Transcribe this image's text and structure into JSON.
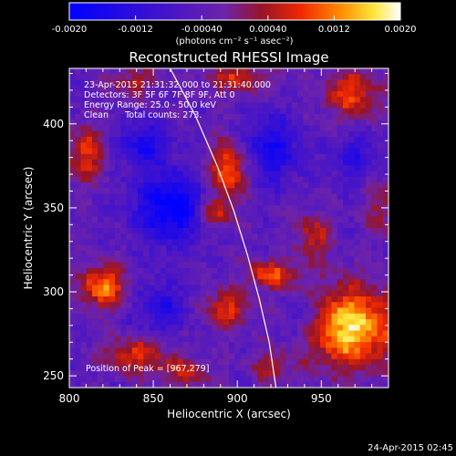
{
  "chart_data": {
    "type": "heatmap",
    "title": "Reconstructed RHESSI Image",
    "xlabel": "Heliocentric X (arcsec)",
    "ylabel": "Heliocentric Y (arcsec)",
    "xlim": [
      800,
      990
    ],
    "ylim": [
      243,
      433
    ],
    "x_ticks": [
      800,
      850,
      900,
      950
    ],
    "y_ticks": [
      250,
      300,
      350,
      400
    ],
    "colorbar": {
      "min": -0.002,
      "max": 0.002,
      "tick_labels": [
        "-0.0020",
        "-0.0012",
        "-0.00040",
        "0.00040",
        "0.0012",
        "0.0020"
      ],
      "unit_label": "(photons cm⁻² s⁻¹ asec⁻²)"
    },
    "annotations": [
      "23-Apr-2015 21:31:32.000 to 21:31:40.000",
      "Detectors: 3F 5F 6F 7F 8F 9F, Att 0",
      "Energy Range: 25.0 - 50.0 keV",
      "Clean      Total counts: 273."
    ],
    "peak_label": "Position of Peak = [967,279]",
    "peak": [
      967,
      279
    ],
    "limb_curve": [
      [
        860,
        433
      ],
      [
        875,
        405
      ],
      [
        888,
        375
      ],
      [
        898,
        348
      ],
      [
        906,
        322
      ],
      [
        913,
        296
      ],
      [
        919,
        270
      ],
      [
        923,
        243
      ]
    ],
    "sources": [
      {
        "x": 967,
        "y": 279,
        "sx": 19,
        "sy": 17,
        "amp": 1.0
      },
      {
        "x": 895,
        "y": 373,
        "sx": 8,
        "sy": 12,
        "amp": 0.75
      },
      {
        "x": 887,
        "y": 347,
        "sx": 7,
        "sy": 6,
        "amp": 0.55
      },
      {
        "x": 968,
        "y": 418,
        "sx": 12,
        "sy": 10,
        "amp": 0.6
      },
      {
        "x": 810,
        "y": 382,
        "sx": 8,
        "sy": 12,
        "amp": 0.55
      },
      {
        "x": 900,
        "y": 427,
        "sx": 14,
        "sy": 6,
        "amp": 0.5
      },
      {
        "x": 838,
        "y": 425,
        "sx": 10,
        "sy": 6,
        "amp": 0.4
      },
      {
        "x": 920,
        "y": 310,
        "sx": 10,
        "sy": 6,
        "amp": 0.65
      },
      {
        "x": 893,
        "y": 290,
        "sx": 10,
        "sy": 8,
        "amp": 0.55
      },
      {
        "x": 820,
        "y": 303,
        "sx": 10,
        "sy": 9,
        "amp": 0.75
      },
      {
        "x": 840,
        "y": 262,
        "sx": 14,
        "sy": 8,
        "amp": 0.55
      },
      {
        "x": 870,
        "y": 252,
        "sx": 10,
        "sy": 6,
        "amp": 0.45
      },
      {
        "x": 945,
        "y": 333,
        "sx": 8,
        "sy": 10,
        "amp": 0.45
      },
      {
        "x": 920,
        "y": 255,
        "sx": 8,
        "sy": 6,
        "amp": 0.4
      },
      {
        "x": 985,
        "y": 350,
        "sx": 6,
        "sy": 12,
        "amp": 0.35
      },
      {
        "x": 860,
        "y": 350,
        "sx": 14,
        "sy": 14,
        "amp": -0.8
      },
      {
        "x": 845,
        "y": 388,
        "sx": 10,
        "sy": 10,
        "amp": -0.5
      },
      {
        "x": 920,
        "y": 385,
        "sx": 12,
        "sy": 14,
        "amp": -0.55
      },
      {
        "x": 855,
        "y": 290,
        "sx": 12,
        "sy": 12,
        "amp": -0.4
      },
      {
        "x": 940,
        "y": 285,
        "sx": 8,
        "sy": 10,
        "amp": -0.35
      },
      {
        "x": 970,
        "y": 380,
        "sx": 10,
        "sy": 10,
        "amp": -0.35
      }
    ],
    "colors": {
      "low": "#0000ff",
      "mid": "#6a22ad",
      "high": "#ffffff",
      "limb": "#ffffff"
    }
  },
  "footer_timestamp": "24-Apr-2015 02:45"
}
